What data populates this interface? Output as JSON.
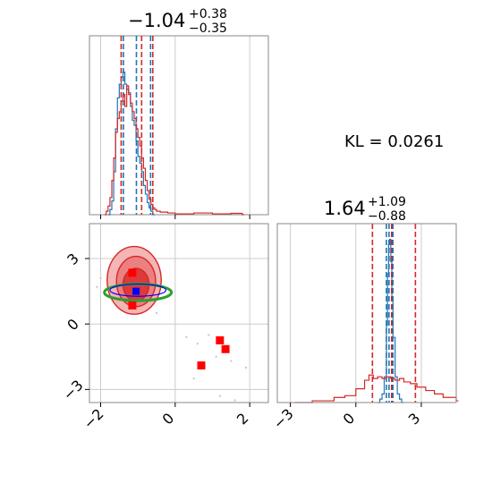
{
  "chart_data": [
    {
      "panel": "marginal-param-1",
      "type": "histogram",
      "title": {
        "median": "−1.04",
        "upper": "+0.38",
        "lower": "−0.35"
      },
      "xlim": [
        -2.3,
        2.5
      ],
      "grid": true,
      "series": [
        {
          "color": "#1f77b4",
          "bins": [
            [
              -1.8,
              0.0
            ],
            [
              -1.75,
              0.03
            ],
            [
              -1.7,
              0.08
            ],
            [
              -1.65,
              0.25
            ],
            [
              -1.6,
              0.5
            ],
            [
              -1.55,
              0.68
            ],
            [
              -1.5,
              0.76
            ],
            [
              -1.45,
              0.8
            ],
            [
              -1.4,
              0.83
            ],
            [
              -1.35,
              0.76
            ],
            [
              -1.3,
              0.73
            ],
            [
              -1.25,
              0.71
            ],
            [
              -1.2,
              0.63
            ],
            [
              -1.15,
              0.55
            ],
            [
              -1.1,
              0.52
            ],
            [
              -1.05,
              0.43
            ],
            [
              -1.0,
              0.34
            ],
            [
              -0.95,
              0.3
            ],
            [
              -0.9,
              0.25
            ],
            [
              -0.85,
              0.17
            ],
            [
              -0.8,
              0.12
            ],
            [
              -0.75,
              0.07
            ],
            [
              -0.7,
              0.04
            ],
            [
              -0.65,
              0.02
            ],
            [
              -0.6,
              0.0
            ]
          ],
          "quantiles": [
            -1.39,
            -1.04,
            -0.66
          ]
        },
        {
          "color": "#d62728",
          "bins": [
            [
              -1.9,
              0.0
            ],
            [
              -1.85,
              0.02
            ],
            [
              -1.8,
              0.05
            ],
            [
              -1.75,
              0.1
            ],
            [
              -1.7,
              0.2
            ],
            [
              -1.65,
              0.33
            ],
            [
              -1.6,
              0.48
            ],
            [
              -1.55,
              0.56
            ],
            [
              -1.5,
              0.6
            ],
            [
              -1.45,
              0.66
            ],
            [
              -1.4,
              0.7
            ],
            [
              -1.35,
              0.63
            ],
            [
              -1.3,
              0.75
            ],
            [
              -1.25,
              0.7
            ],
            [
              -1.2,
              0.65
            ],
            [
              -1.15,
              0.6
            ],
            [
              -1.1,
              0.56
            ],
            [
              -1.05,
              0.5
            ],
            [
              -1.0,
              0.45
            ],
            [
              -0.95,
              0.4
            ],
            [
              -0.9,
              0.33
            ],
            [
              -0.85,
              0.27
            ],
            [
              -0.8,
              0.2
            ],
            [
              -0.75,
              0.14
            ],
            [
              -0.7,
              0.09
            ],
            [
              -0.65,
              0.06
            ],
            [
              -0.6,
              0.04
            ],
            [
              -0.55,
              0.03
            ],
            [
              -0.5,
              0.02
            ],
            [
              -0.4,
              0.015
            ],
            [
              -0.2,
              0.01
            ],
            [
              0.0,
              0.005
            ],
            [
              0.5,
              0.01
            ],
            [
              1.0,
              0.005
            ],
            [
              1.5,
              0.008
            ],
            [
              1.8,
              0.0
            ]
          ],
          "quantiles": [
            -1.45,
            -0.9,
            -0.6
          ]
        }
      ]
    },
    {
      "panel": "joint-2d",
      "type": "contour-scatter",
      "xlim": [
        -2.3,
        2.5
      ],
      "ylim": [
        -3.6,
        4.6
      ],
      "xticks": [
        "−2",
        "0",
        "2"
      ],
      "yticks": [
        "3",
        "0",
        "−3"
      ],
      "xtick_values": [
        -2,
        0,
        2
      ],
      "ytick_values": [
        3,
        0,
        -3
      ],
      "grid": true,
      "red_contour_levels": [
        {
          "opacity": 0.45,
          "center": [
            -1.1,
            2.0
          ],
          "rx": 1.45,
          "ry": 3.1
        },
        {
          "opacity": 0.75,
          "center": [
            -1.05,
            1.95
          ],
          "rx": 1.05,
          "ry": 2.3
        },
        {
          "opacity": 1.0,
          "center": [
            -1.05,
            1.8
          ],
          "rx": 0.7,
          "ry": 1.5
        }
      ],
      "blue_ellipse": {
        "center": [
          -1.0,
          1.55
        ],
        "rx": 0.75,
        "ry": 0.28,
        "color": "#0000ff"
      },
      "green_ellipse": {
        "center": [
          -1.0,
          1.45
        ],
        "rx": 0.9,
        "ry": 0.38,
        "color": "#2ca02c"
      },
      "red_markers": [
        [
          -1.15,
          2.35
        ],
        [
          -1.15,
          0.85
        ],
        [
          1.2,
          -0.75
        ],
        [
          1.35,
          -1.15
        ],
        [
          0.7,
          -1.9
        ]
      ],
      "blue_marker": [
        -1.05,
        1.5
      ],
      "outlier_points": [
        [
          -2.1,
          1.7
        ],
        [
          -2.0,
          2.1
        ],
        [
          -0.5,
          0.5
        ],
        [
          0.3,
          -0.6
        ],
        [
          0.6,
          -0.9
        ],
        [
          0.9,
          -0.5
        ],
        [
          1.1,
          -1.5
        ],
        [
          1.5,
          -1.7
        ],
        [
          1.9,
          -2.0
        ],
        [
          1.6,
          -3.5
        ],
        [
          1.2,
          -3.3
        ],
        [
          0.5,
          -2.5
        ]
      ]
    },
    {
      "panel": "marginal-param-2",
      "type": "histogram",
      "title": {
        "median": "1.64",
        "upper": "+1.09",
        "lower": "−0.88"
      },
      "xlim": [
        -3.6,
        4.6
      ],
      "xticks": [
        "−3",
        "0",
        "3"
      ],
      "xtick_values": [
        -3,
        0,
        3
      ],
      "grid": true,
      "series": [
        {
          "color": "#1f77b4",
          "bins": [
            [
              1.0,
              0.0
            ],
            [
              1.1,
              0.02
            ],
            [
              1.2,
              0.05
            ],
            [
              1.3,
              0.15
            ],
            [
              1.4,
              0.45
            ],
            [
              1.45,
              0.75
            ],
            [
              1.5,
              0.92
            ],
            [
              1.55,
              0.95
            ],
            [
              1.6,
              0.82
            ],
            [
              1.65,
              0.6
            ],
            [
              1.7,
              0.38
            ],
            [
              1.8,
              0.15
            ],
            [
              1.9,
              0.05
            ],
            [
              2.0,
              0.02
            ],
            [
              2.1,
              0.0
            ]
          ],
          "quantiles": [
            1.4,
            1.52,
            1.7
          ]
        },
        {
          "color": "#d62728",
          "bins": [
            [
              -2.8,
              0.0
            ],
            [
              -2.0,
              0.01
            ],
            [
              -1.0,
              0.03
            ],
            [
              -0.5,
              0.04
            ],
            [
              0.0,
              0.08
            ],
            [
              0.4,
              0.13
            ],
            [
              0.6,
              0.16
            ],
            [
              0.8,
              0.14
            ],
            [
              1.0,
              0.15
            ],
            [
              1.2,
              0.14
            ],
            [
              1.4,
              0.15
            ],
            [
              1.6,
              0.14
            ],
            [
              1.8,
              0.13
            ],
            [
              2.0,
              0.14
            ],
            [
              2.2,
              0.12
            ],
            [
              2.5,
              0.11
            ],
            [
              2.8,
              0.09
            ],
            [
              3.2,
              0.07
            ],
            [
              3.6,
              0.05
            ],
            [
              4.0,
              0.03
            ],
            [
              4.6,
              0.01
            ]
          ],
          "quantiles": [
            0.76,
            1.64,
            2.73
          ]
        }
      ]
    }
  ],
  "annotation": {
    "kl_text": "KL = 0.0261"
  }
}
